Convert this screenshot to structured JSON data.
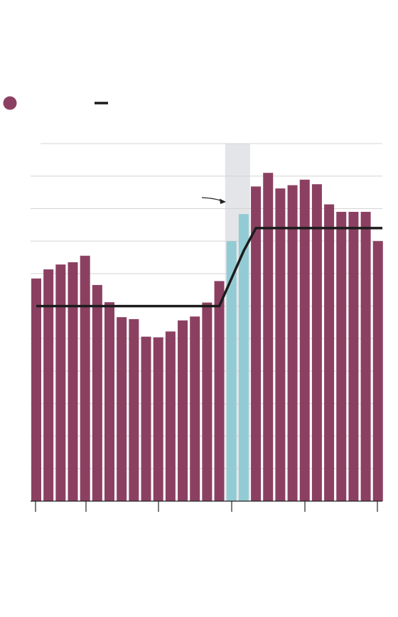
{
  "chart_data": {
    "type": "bar",
    "categories": [
      "",
      "",
      "",
      "",
      "",
      "",
      "",
      "",
      "",
      "",
      "",
      "",
      "",
      "",
      "",
      "",
      "",
      "",
      "",
      "",
      "",
      "",
      "",
      "",
      "",
      "",
      "",
      "",
      ""
    ],
    "values": [
      68.5,
      71.3,
      72.8,
      73.5,
      75.5,
      66.5,
      61.2,
      56.6,
      56.0,
      50.6,
      50.4,
      52.2,
      55.6,
      56.8,
      61.1,
      67.7,
      80.0,
      88.3,
      96.8,
      101.0,
      96.2,
      97.2,
      98.9,
      97.5,
      91.3,
      89.0,
      89.0,
      89.0,
      80.0
    ],
    "highlight_indices": [
      16,
      17
    ],
    "trend_line": [
      {
        "x": 0,
        "y": 60.0
      },
      {
        "x": 15,
        "y": 60.0
      },
      {
        "x": 17,
        "y": 77.0
      },
      {
        "x": 18,
        "y": 84.0
      },
      {
        "x": 28,
        "y": 84.0
      }
    ],
    "ylim": [
      0,
      110
    ],
    "grid": true,
    "colors": {
      "bar": "#8b4062",
      "highlight_bar": "#93cbd4",
      "shade": "#e4e5e8",
      "trend": "#1c1c1c",
      "grid": "#d4d4d4"
    },
    "legend": [
      {
        "marker": "circle",
        "color": "#8b4062",
        "label": ""
      },
      {
        "marker": "line",
        "color": "#1c1c1c",
        "label": ""
      }
    ],
    "title": "",
    "xlabel": "",
    "ylabel": ""
  }
}
